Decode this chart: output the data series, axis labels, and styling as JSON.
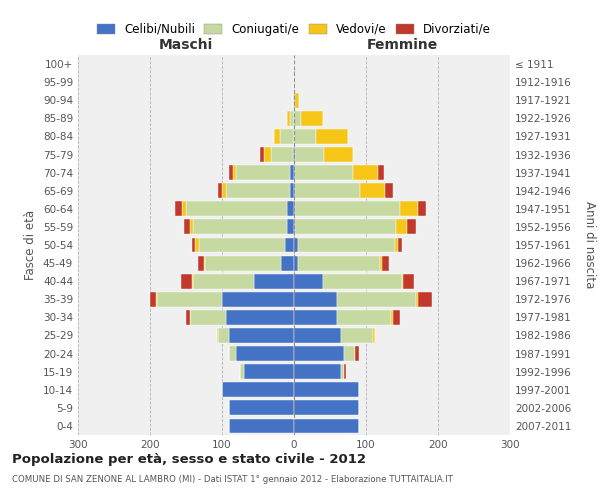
{
  "age_groups": [
    "0-4",
    "5-9",
    "10-14",
    "15-19",
    "20-24",
    "25-29",
    "30-34",
    "35-39",
    "40-44",
    "45-49",
    "50-54",
    "55-59",
    "60-64",
    "65-69",
    "70-74",
    "75-79",
    "80-84",
    "85-89",
    "90-94",
    "95-99",
    "100+"
  ],
  "birth_years": [
    "2007-2011",
    "2002-2006",
    "1997-2001",
    "1992-1996",
    "1987-1991",
    "1982-1986",
    "1977-1981",
    "1972-1976",
    "1967-1971",
    "1962-1966",
    "1957-1961",
    "1952-1956",
    "1947-1951",
    "1942-1946",
    "1937-1941",
    "1932-1936",
    "1927-1931",
    "1922-1926",
    "1917-1921",
    "1912-1916",
    "≤ 1911"
  ],
  "maschi": {
    "celibi": [
      90,
      90,
      100,
      70,
      80,
      90,
      95,
      100,
      55,
      18,
      12,
      10,
      10,
      5,
      5,
      2,
      0,
      0,
      0,
      0,
      0
    ],
    "coniugati": [
      0,
      0,
      0,
      5,
      10,
      15,
      50,
      90,
      85,
      105,
      120,
      130,
      140,
      90,
      75,
      30,
      20,
      5,
      2,
      0,
      0
    ],
    "vedovi": [
      0,
      0,
      0,
      0,
      0,
      2,
      0,
      2,
      2,
      2,
      5,
      5,
      5,
      5,
      5,
      10,
      8,
      5,
      0,
      0,
      0
    ],
    "divorziati": [
      0,
      0,
      0,
      0,
      0,
      0,
      5,
      8,
      15,
      8,
      5,
      8,
      10,
      5,
      5,
      5,
      0,
      0,
      0,
      0,
      0
    ]
  },
  "femmine": {
    "nubili": [
      90,
      90,
      90,
      65,
      70,
      65,
      60,
      60,
      40,
      5,
      5,
      2,
      2,
      2,
      2,
      2,
      0,
      0,
      2,
      0,
      0
    ],
    "coniugate": [
      0,
      0,
      0,
      5,
      15,
      45,
      75,
      110,
      110,
      115,
      135,
      140,
      145,
      90,
      80,
      40,
      30,
      10,
      0,
      0,
      0
    ],
    "vedove": [
      0,
      0,
      0,
      0,
      0,
      2,
      2,
      2,
      2,
      2,
      5,
      15,
      25,
      35,
      35,
      40,
      45,
      30,
      5,
      2,
      0
    ],
    "divorziate": [
      0,
      0,
      0,
      2,
      5,
      0,
      10,
      20,
      15,
      10,
      5,
      12,
      12,
      10,
      8,
      0,
      0,
      0,
      0,
      0,
      0
    ]
  },
  "colors": {
    "celibi": "#4472c4",
    "coniugati": "#c5d9a0",
    "vedovi": "#f5c518",
    "divorziati": "#c0392b"
  },
  "xlim": 300,
  "title": "Popolazione per età, sesso e stato civile - 2012",
  "subtitle": "COMUNE DI SAN ZENONE AL LAMBRO (MI) - Dati ISTAT 1° gennaio 2012 - Elaborazione TUTTAITALIA.IT",
  "ylabel_left": "Fasce di età",
  "ylabel_right": "Anni di nascita",
  "xlabel_maschi": "Maschi",
  "xlabel_femmine": "Femmine",
  "legend_labels": [
    "Celibi/Nubili",
    "Coniugati/e",
    "Vedovi/e",
    "Divorziati/e"
  ],
  "bg_color": "#f0f0f0"
}
